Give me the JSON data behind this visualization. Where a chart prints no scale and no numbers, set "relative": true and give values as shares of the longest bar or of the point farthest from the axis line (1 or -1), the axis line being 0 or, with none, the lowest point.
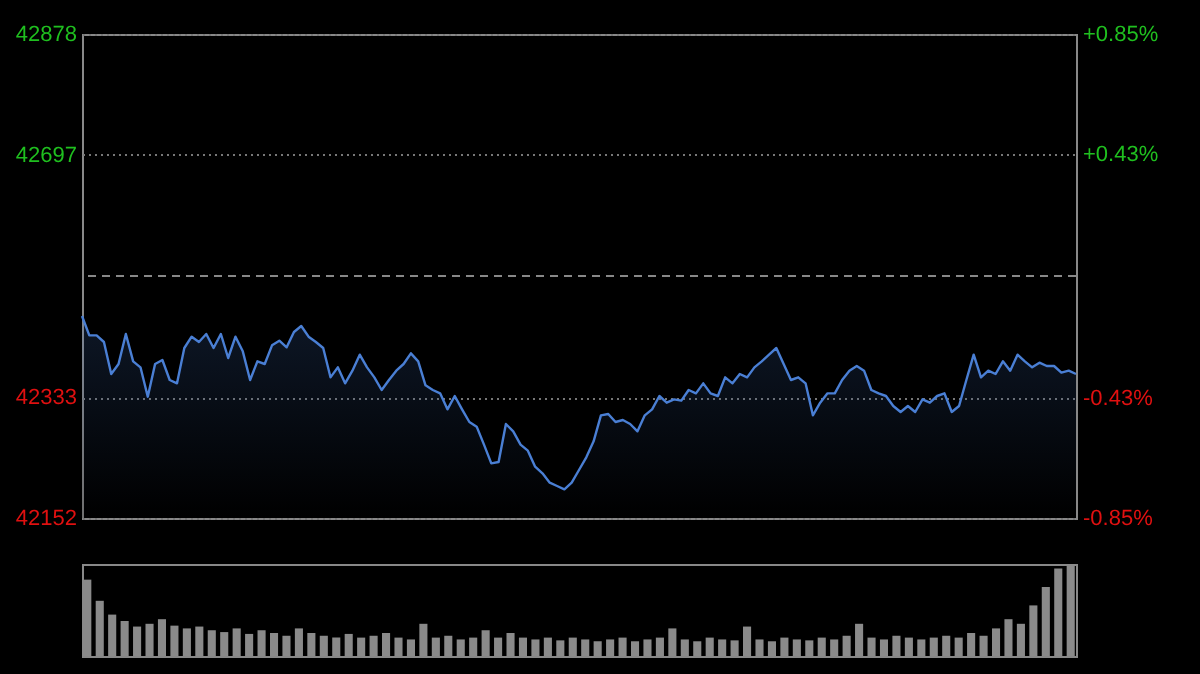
{
  "chart_data": [
    {
      "type": "area",
      "categories": [
        null,
        null,
        null,
        null,
        null,
        null,
        null,
        null,
        null,
        null,
        null,
        null,
        null,
        null,
        null,
        null,
        null,
        null,
        null,
        null,
        null,
        null,
        null,
        null,
        null,
        null,
        null,
        null,
        null,
        null,
        null,
        null,
        null,
        null,
        null,
        null,
        null,
        null,
        null,
        null,
        null,
        null,
        null,
        null,
        null,
        null,
        null,
        null,
        null,
        null,
        null,
        null,
        null,
        null,
        null,
        null,
        null,
        null,
        null,
        null,
        null,
        null,
        null,
        null,
        null,
        null,
        null,
        null,
        null,
        null,
        null,
        null,
        null,
        null,
        null,
        null,
        null,
        null,
        null,
        null,
        null,
        null,
        null,
        null,
        null,
        null,
        null,
        null,
        null,
        null,
        null,
        null,
        null,
        null,
        null,
        null,
        null,
        null,
        null,
        null,
        null,
        null,
        null,
        null,
        null,
        null,
        null,
        null,
        null,
        null,
        null,
        null,
        null,
        null,
        null,
        null,
        null,
        null,
        null,
        null,
        null,
        null,
        null,
        null,
        null,
        null,
        null,
        null,
        null,
        null,
        null,
        null,
        null,
        null,
        null,
        null,
        null
      ],
      "series": [
        {
          "color": "#4a7fd4",
          "values": [
            42455,
            42426,
            42426,
            42416,
            42368,
            42383,
            42428,
            42387,
            42378,
            42334,
            42383,
            42389,
            42359,
            42354,
            42407,
            42424,
            42416,
            42428,
            42407,
            42428,
            42392,
            42424,
            42402,
            42359,
            42387,
            42383,
            42411,
            42418,
            42408,
            42431,
            42440,
            42424,
            42416,
            42407,
            42363,
            42378,
            42354,
            42373,
            42397,
            42378,
            42363,
            42344,
            42359,
            42373,
            42383,
            42399,
            42387,
            42351,
            42344,
            42339,
            42315,
            42335,
            42315,
            42296,
            42289,
            42262,
            42234,
            42236,
            42293,
            42282,
            42262,
            42253,
            42229,
            42219,
            42205,
            42200,
            42195,
            42205,
            42224,
            42243,
            42267,
            42306,
            42308,
            42296,
            42299,
            42293,
            42282,
            42306,
            42315,
            42335,
            42325,
            42330,
            42328,
            42344,
            42339,
            42354,
            42339,
            42335,
            42363,
            42354,
            42368,
            42363,
            42378,
            42387,
            42397,
            42407,
            42383,
            42359,
            42363,
            42354,
            42306,
            42325,
            42339,
            42339,
            42359,
            42373,
            42380,
            42373,
            42344,
            42339,
            42335,
            42320,
            42311,
            42320,
            42311,
            42330,
            42325,
            42335,
            42339,
            42311,
            42320,
            42359,
            42397,
            42363,
            42373,
            42368,
            42387,
            42373,
            42397,
            42387,
            42378,
            42385,
            42380,
            42380,
            42370,
            42373,
            42368
          ]
        }
      ],
      "ylim": [
        42152,
        42878
      ],
      "yticks": [
        42152,
        42333,
        42697,
        42878
      ],
      "y2lim": [
        -0.85,
        0.85
      ],
      "y2ticks": [
        {
          "value": -0.85,
          "label": "-0.85%"
        },
        {
          "value": -0.43,
          "label": "-0.43%"
        },
        {
          "value": 0.43,
          "label": "+0.43%"
        },
        {
          "value": 0.85,
          "label": "+0.85%"
        }
      ],
      "ref_lines": [
        {
          "axis": "y2",
          "value": 0,
          "line_style": "dashed"
        }
      ],
      "grid": "y"
    },
    {
      "type": "bar",
      "relative": true,
      "categories": [
        null,
        null,
        null,
        null,
        null,
        null,
        null,
        null,
        null,
        null,
        null,
        null,
        null,
        null,
        null,
        null,
        null,
        null,
        null,
        null,
        null,
        null,
        null,
        null,
        null,
        null,
        null,
        null,
        null,
        null,
        null,
        null,
        null,
        null,
        null,
        null,
        null,
        null,
        null,
        null,
        null,
        null,
        null,
        null,
        null,
        null,
        null,
        null,
        null,
        null,
        null,
        null,
        null,
        null,
        null,
        null,
        null,
        null,
        null,
        null,
        null,
        null,
        null,
        null,
        null,
        null,
        null,
        null,
        null,
        null,
        null,
        null,
        null,
        null,
        null,
        null,
        null,
        null,
        null,
        null
      ],
      "series": [
        {
          "color": "#8a8a8a",
          "values": [
            0.83,
            0.6,
            0.45,
            0.38,
            0.32,
            0.35,
            0.4,
            0.33,
            0.3,
            0.32,
            0.28,
            0.26,
            0.3,
            0.24,
            0.28,
            0.25,
            0.22,
            0.3,
            0.25,
            0.22,
            0.2,
            0.24,
            0.2,
            0.22,
            0.25,
            0.2,
            0.18,
            0.35,
            0.2,
            0.22,
            0.18,
            0.2,
            0.28,
            0.2,
            0.25,
            0.2,
            0.18,
            0.2,
            0.17,
            0.2,
            0.18,
            0.16,
            0.18,
            0.2,
            0.16,
            0.18,
            0.2,
            0.3,
            0.18,
            0.16,
            0.2,
            0.18,
            0.17,
            0.32,
            0.18,
            0.16,
            0.2,
            0.18,
            0.17,
            0.2,
            0.18,
            0.22,
            0.35,
            0.2,
            0.18,
            0.22,
            0.2,
            0.18,
            0.2,
            0.22,
            0.2,
            0.25,
            0.22,
            0.3,
            0.4,
            0.35,
            0.55,
            0.75,
            0.95,
            1
          ]
        }
      ]
    }
  ]
}
